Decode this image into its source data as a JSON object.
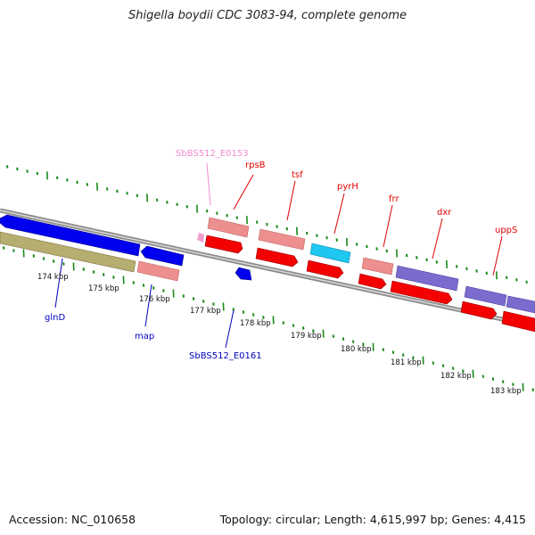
{
  "title": "Shigella boydii CDC 3083-94, complete genome",
  "accession": "Accession: NC_010658",
  "topology": "Topology: circular; Length: 4,615,997 bp; Genes: 4,415",
  "colors": {
    "backbone": "#8c8c8c",
    "forward_cds": "#f40000",
    "forward_pink": "#ee8f8f",
    "reverse_cds": "#0000ee",
    "rrna": "#b6ad70",
    "cyan": "#1ec6f0",
    "purple": "#7a6ccf",
    "tick_green": "#1a8a1a",
    "label_red": "#e00000",
    "label_blue": "#0000c0",
    "label_pink": "#f08ad0"
  },
  "scale_ticks": [
    "174 kbp",
    "175 kbp",
    "176 kbp",
    "177 kbp",
    "178 kbp",
    "179 kbp",
    "180 kbp",
    "181 kbp",
    "182 kbp",
    "183 kbp"
  ],
  "gene_labels": {
    "SbBS512_E0153": "SbBS512_E0153",
    "rpsB": "rpsB",
    "tsf": "tsf",
    "pyrH": "pyrH",
    "frr": "frr",
    "dxr": "dxr",
    "uppS": "uppS",
    "glnD": "glnD",
    "map": "map",
    "SbBS512_E0161": "SbBS512_E0161"
  }
}
